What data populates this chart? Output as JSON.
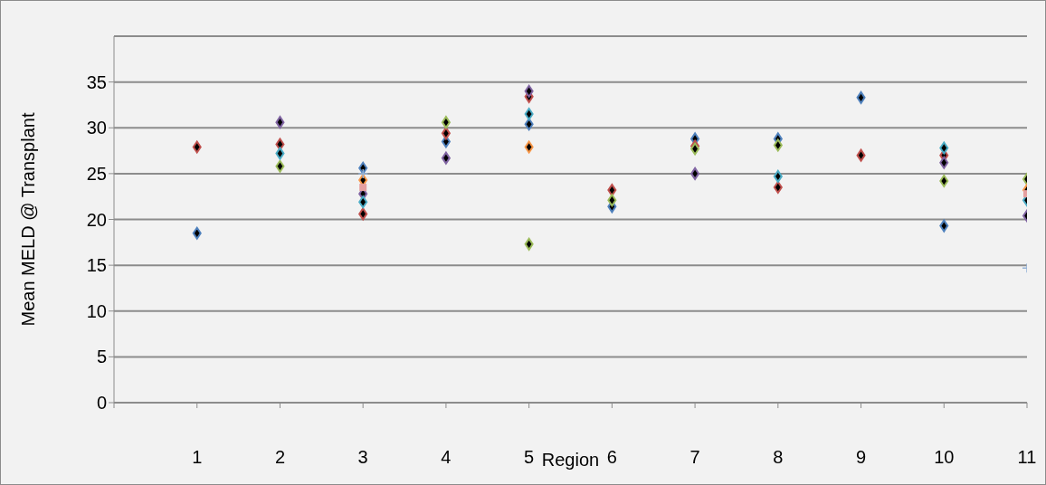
{
  "chart_data": {
    "type": "scatter",
    "xlabel": "Region",
    "ylabel": "Mean MELD @ Transplant",
    "x": [
      1,
      2,
      3,
      4,
      5,
      6,
      7,
      8,
      9,
      10,
      11
    ],
    "xlim": [
      0,
      11
    ],
    "xticks": [
      {
        "value": 0,
        "label": null
      },
      1,
      2,
      3,
      4,
      5,
      6,
      7,
      8,
      9,
      10,
      11
    ],
    "ylim": [
      0,
      40
    ],
    "yticks": [
      0,
      5,
      10,
      15,
      20,
      25,
      30,
      35
    ],
    "grid": "y",
    "marker": "diamond",
    "series": [
      {
        "color": "#4f81bd",
        "values": [
          18.5,
          null,
          25.6,
          28.5,
          30.4,
          21.4,
          28.8,
          28.8,
          33.3,
          19.3,
          null
        ]
      },
      {
        "color": "#c0504d",
        "values": [
          27.9,
          28.2,
          20.6,
          29.4,
          33.4,
          23.2,
          28.0,
          23.5,
          27.0,
          27.0,
          null
        ]
      },
      {
        "color": "#9bbb59",
        "values": [
          null,
          25.8,
          null,
          30.6,
          17.3,
          22.1,
          27.7,
          28.1,
          null,
          24.2,
          24.4
        ]
      },
      {
        "color": "#8064a2",
        "values": [
          null,
          30.6,
          22.8,
          26.7,
          34.0,
          null,
          25.0,
          null,
          null,
          26.2,
          20.4
        ]
      },
      {
        "color": "#4bacc6",
        "values": [
          null,
          27.2,
          21.9,
          null,
          31.5,
          null,
          null,
          24.7,
          null,
          27.8,
          22.1
        ]
      },
      {
        "color": "#f79646",
        "values": [
          null,
          null,
          24.3,
          null,
          27.9,
          null,
          null,
          null,
          null,
          null,
          23.2
        ]
      },
      {
        "color": "#e6a0a0",
        "marker": "square",
        "values": [
          null,
          null,
          23.5,
          null,
          null,
          null,
          null,
          null,
          null,
          null,
          22.8
        ]
      },
      {
        "color": "#95b3d7",
        "marker": "cross",
        "values": [
          null,
          null,
          25.0,
          null,
          null,
          null,
          null,
          null,
          null,
          null,
          14.7
        ]
      }
    ]
  }
}
